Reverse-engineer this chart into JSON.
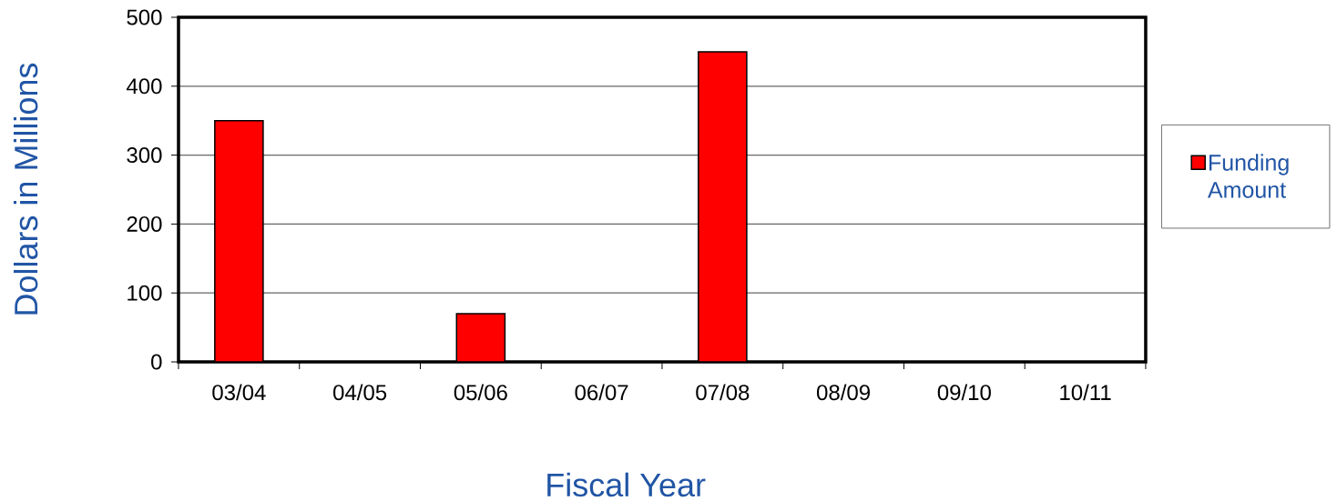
{
  "chart_data": {
    "type": "bar",
    "xlabel": "Fiscal Year",
    "ylabel": "Dollars in Millions",
    "categories": [
      "03/04",
      "04/05",
      "05/06",
      "06/07",
      "07/08",
      "08/09",
      "09/10",
      "10/11"
    ],
    "series": [
      {
        "name": "Funding Amount",
        "color": "#ff0000",
        "values": [
          350,
          null,
          70,
          null,
          450,
          null,
          null,
          null
        ]
      }
    ],
    "ylim": [
      0,
      500
    ],
    "yticks": [
      0,
      100,
      200,
      300,
      400,
      500
    ],
    "grid": "y",
    "legend": "right"
  }
}
